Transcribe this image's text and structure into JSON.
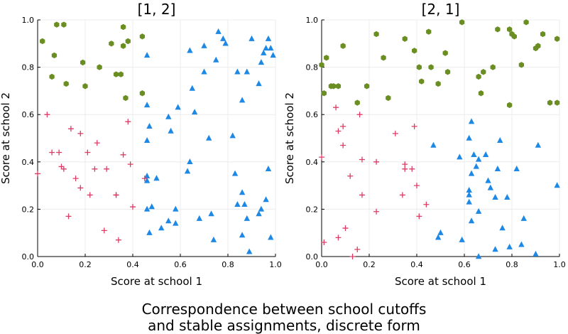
{
  "caption": {
    "line1": "Correspondence between school cutoffs",
    "line2": "and stable assignments, discrete form"
  },
  "colors": {
    "green": "#6b8e23",
    "blue": "#1e88e5",
    "red": "#dc3c64",
    "grid": "#ececec"
  },
  "chart_data": [
    {
      "type": "scatter",
      "title": "[1, 2]",
      "xlabel": "Score at school 1",
      "ylabel": "Score at school 2",
      "xlim": [
        0,
        1
      ],
      "ylim": [
        0,
        1
      ],
      "xticks": [
        "0.0",
        "0.2",
        "0.4",
        "0.6",
        "0.8",
        "1.0"
      ],
      "yticks": [
        "0.0",
        "0.2",
        "0.4",
        "0.6",
        "0.8",
        "1.0"
      ],
      "grid": true,
      "legend": "none",
      "series": [
        {
          "marker": "hexagon",
          "color": "#6b8e23",
          "points": [
            [
              0.02,
              0.91
            ],
            [
              0.06,
              0.76
            ],
            [
              0.07,
              0.85
            ],
            [
              0.08,
              0.98
            ],
            [
              0.11,
              0.98
            ],
            [
              0.12,
              0.73
            ],
            [
              0.19,
              0.82
            ],
            [
              0.2,
              0.72
            ],
            [
              0.26,
              0.8
            ],
            [
              0.31,
              0.9
            ],
            [
              0.33,
              0.77
            ],
            [
              0.35,
              0.77
            ],
            [
              0.36,
              0.89
            ],
            [
              0.36,
              0.97
            ],
            [
              0.37,
              0.67
            ],
            [
              0.38,
              0.91
            ],
            [
              0.44,
              0.93
            ],
            [
              0.44,
              0.69
            ]
          ]
        },
        {
          "marker": "triangle",
          "color": "#1e88e5",
          "points": [
            [
              0.46,
              0.85
            ],
            [
              0.46,
              0.64
            ],
            [
              0.47,
              0.55
            ],
            [
              0.46,
              0.49
            ],
            [
              0.55,
              0.59
            ],
            [
              0.56,
              0.53
            ],
            [
              0.59,
              0.63
            ],
            [
              0.64,
              0.87
            ],
            [
              0.65,
              0.71
            ],
            [
              0.66,
              0.61
            ],
            [
              0.7,
              0.89
            ],
            [
              0.7,
              0.78
            ],
            [
              0.72,
              0.5
            ],
            [
              0.75,
              0.83
            ],
            [
              0.76,
              0.95
            ],
            [
              0.78,
              0.92
            ],
            [
              0.79,
              0.9
            ],
            [
              0.82,
              0.51
            ],
            [
              0.84,
              0.78
            ],
            [
              0.86,
              0.66
            ],
            [
              0.88,
              0.78
            ],
            [
              0.9,
              0.92
            ],
            [
              0.93,
              0.73
            ],
            [
              0.94,
              0.82
            ],
            [
              0.95,
              0.86
            ],
            [
              0.96,
              0.88
            ],
            [
              0.97,
              0.92
            ],
            [
              0.98,
              0.88
            ],
            [
              0.99,
              0.85
            ],
            [
              0.46,
              0.34
            ],
            [
              0.46,
              0.32
            ],
            [
              0.5,
              0.33
            ],
            [
              0.63,
              0.36
            ],
            [
              0.64,
              0.4
            ],
            [
              0.83,
              0.35
            ],
            [
              0.86,
              0.27
            ],
            [
              0.87,
              0.22
            ],
            [
              0.94,
              0.2
            ],
            [
              0.96,
              0.24
            ],
            [
              0.97,
              0.37
            ],
            [
              0.46,
              0.2
            ],
            [
              0.47,
              0.1
            ],
            [
              0.48,
              0.21
            ],
            [
              0.52,
              0.12
            ],
            [
              0.55,
              0.15
            ],
            [
              0.58,
              0.2
            ],
            [
              0.58,
              0.14
            ],
            [
              0.68,
              0.16
            ],
            [
              0.73,
              0.18
            ],
            [
              0.74,
              0.07
            ],
            [
              0.84,
              0.22
            ],
            [
              0.86,
              0.09
            ],
            [
              0.88,
              0.16
            ],
            [
              0.89,
              0.02
            ],
            [
              0.93,
              0.18
            ],
            [
              0.98,
              0.08
            ]
          ]
        },
        {
          "marker": "plus",
          "color": "#dc3c64",
          "points": [
            [
              0.0,
              0.35
            ],
            [
              0.04,
              0.6
            ],
            [
              0.06,
              0.44
            ],
            [
              0.09,
              0.44
            ],
            [
              0.1,
              0.38
            ],
            [
              0.11,
              0.37
            ],
            [
              0.14,
              0.54
            ],
            [
              0.16,
              0.33
            ],
            [
              0.18,
              0.52
            ],
            [
              0.18,
              0.29
            ],
            [
              0.21,
              0.44
            ],
            [
              0.22,
              0.26
            ],
            [
              0.24,
              0.37
            ],
            [
              0.25,
              0.48
            ],
            [
              0.28,
              0.11
            ],
            [
              0.29,
              0.37
            ],
            [
              0.33,
              0.26
            ],
            [
              0.33,
              0.26
            ],
            [
              0.34,
              0.07
            ],
            [
              0.36,
              0.43
            ],
            [
              0.38,
              0.57
            ],
            [
              0.39,
              0.39
            ],
            [
              0.4,
              0.21
            ],
            [
              0.45,
              0.33
            ],
            [
              0.13,
              0.17
            ]
          ]
        }
      ]
    },
    {
      "type": "scatter",
      "title": "[2, 1]",
      "xlabel": "Score at school 1",
      "ylabel": "Score at school 2",
      "xlim": [
        0,
        1
      ],
      "ylim": [
        0,
        1
      ],
      "xticks": [
        "0.0",
        "0.2",
        "0.4",
        "0.6",
        "0.8",
        "1.0"
      ],
      "yticks": [
        "0.0",
        "0.2",
        "0.4",
        "0.6",
        "0.8",
        "1.0"
      ],
      "grid": true,
      "legend": "none",
      "series": [
        {
          "marker": "hexagon",
          "color": "#6b8e23",
          "points": [
            [
              0.0,
              0.81
            ],
            [
              0.01,
              0.69
            ],
            [
              0.02,
              0.84
            ],
            [
              0.04,
              0.72
            ],
            [
              0.05,
              0.72
            ],
            [
              0.07,
              0.72
            ],
            [
              0.09,
              0.89
            ],
            [
              0.15,
              0.65
            ],
            [
              0.19,
              0.72
            ],
            [
              0.23,
              0.94
            ],
            [
              0.26,
              0.84
            ],
            [
              0.28,
              0.67
            ],
            [
              0.35,
              0.92
            ],
            [
              0.39,
              0.87
            ],
            [
              0.42,
              0.74
            ],
            [
              0.45,
              0.95
            ],
            [
              0.46,
              0.8
            ],
            [
              0.49,
              0.73
            ],
            [
              0.52,
              0.86
            ],
            [
              0.53,
              0.78
            ],
            [
              0.59,
              0.99
            ],
            [
              0.66,
              0.76
            ],
            [
              0.67,
              0.69
            ],
            [
              0.68,
              0.78
            ],
            [
              0.72,
              0.8
            ],
            [
              0.74,
              0.96
            ],
            [
              0.79,
              0.96
            ],
            [
              0.8,
              0.94
            ],
            [
              0.81,
              0.93
            ],
            [
              0.84,
              0.81
            ],
            [
              0.86,
              0.99
            ],
            [
              0.9,
              0.88
            ],
            [
              0.91,
              0.89
            ],
            [
              0.93,
              0.94
            ],
            [
              0.96,
              0.65
            ],
            [
              0.99,
              0.92
            ],
            [
              0.41,
              0.8
            ],
            [
              0.79,
              0.64
            ],
            [
              0.99,
              0.65
            ]
          ]
        },
        {
          "marker": "triangle",
          "color": "#1e88e5",
          "points": [
            [
              0.47,
              0.47
            ],
            [
              0.58,
              0.42
            ],
            [
              0.62,
              0.5
            ],
            [
              0.63,
              0.57
            ],
            [
              0.64,
              0.43
            ],
            [
              0.66,
              0.41
            ],
            [
              0.69,
              0.43
            ],
            [
              0.74,
              0.37
            ],
            [
              0.75,
              0.49
            ],
            [
              0.63,
              0.35
            ],
            [
              0.62,
              0.28
            ],
            [
              0.62,
              0.26
            ],
            [
              0.66,
              0.19
            ],
            [
              0.7,
              0.32
            ],
            [
              0.71,
              0.29
            ],
            [
              0.73,
              0.25
            ],
            [
              0.78,
              0.25
            ],
            [
              0.82,
              0.37
            ],
            [
              0.91,
              0.47
            ],
            [
              0.99,
              0.3
            ],
            [
              0.63,
              0.15
            ],
            [
              0.65,
              0.38
            ],
            [
              0.49,
              0.08
            ],
            [
              0.5,
              0.1
            ],
            [
              0.59,
              0.07
            ],
            [
              0.66,
              0.0
            ],
            [
              0.73,
              0.03
            ],
            [
              0.76,
              0.12
            ],
            [
              0.79,
              0.04
            ],
            [
              0.84,
              0.05
            ],
            [
              0.85,
              0.16
            ],
            [
              0.9,
              0.01
            ],
            [
              0.62,
              0.23
            ]
          ]
        },
        {
          "marker": "plus",
          "color": "#dc3c64",
          "points": [
            [
              0.0,
              0.42
            ],
            [
              0.01,
              0.06
            ],
            [
              0.07,
              0.08
            ],
            [
              0.07,
              0.53
            ],
            [
              0.09,
              0.47
            ],
            [
              0.09,
              0.55
            ],
            [
              0.1,
              0.12
            ],
            [
              0.12,
              0.34
            ],
            [
              0.13,
              0.0
            ],
            [
              0.15,
              0.03
            ],
            [
              0.16,
              0.6
            ],
            [
              0.17,
              0.41
            ],
            [
              0.17,
              0.26
            ],
            [
              0.23,
              0.19
            ],
            [
              0.23,
              0.4
            ],
            [
              0.31,
              0.52
            ],
            [
              0.34,
              0.26
            ],
            [
              0.35,
              0.39
            ],
            [
              0.35,
              0.37
            ],
            [
              0.38,
              0.37
            ],
            [
              0.39,
              0.55
            ],
            [
              0.4,
              0.3
            ],
            [
              0.41,
              0.17
            ],
            [
              0.44,
              0.22
            ],
            [
              0.06,
              0.63
            ]
          ]
        }
      ]
    }
  ]
}
